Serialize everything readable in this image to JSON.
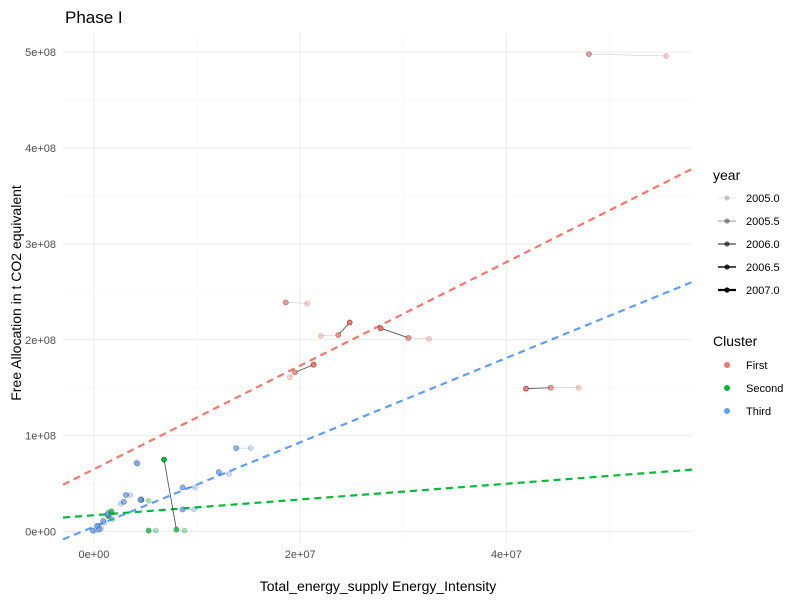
{
  "chart_data": {
    "type": "scatter",
    "title": "Phase I",
    "xlabel": "Total_energy_supply Energy_Intensity",
    "ylabel": "Free Allocation in t CO2 equivalent",
    "xlim": [
      -3000000,
      58000000
    ],
    "ylim": [
      -12000000,
      520000000
    ],
    "x_ticks": [
      {
        "value": 0,
        "label": "0e+00"
      },
      {
        "value": 20000000,
        "label": "2e+07"
      },
      {
        "value": 40000000,
        "label": "4e+07"
      }
    ],
    "y_ticks": [
      {
        "value": 0,
        "label": "0e+00"
      },
      {
        "value": 100000000,
        "label": "1e+08"
      },
      {
        "value": 200000000,
        "label": "2e+08"
      },
      {
        "value": 300000000,
        "label": "3e+08"
      },
      {
        "value": 400000000,
        "label": "4e+08"
      },
      {
        "value": 500000000,
        "label": "5e+08"
      }
    ],
    "grid": true,
    "legend_placement": "right",
    "legends": {
      "year": {
        "title": "year",
        "entries": [
          "2005.0",
          "2005.5",
          "2006.0",
          "2006.5",
          "2007.0"
        ]
      },
      "cluster": {
        "title": "Cluster",
        "entries": [
          {
            "name": "First",
            "color": "#F8766D"
          },
          {
            "name": "Second",
            "color": "#00BA38"
          },
          {
            "name": "Third",
            "color": "#619CFF"
          }
        ]
      }
    },
    "trend_lines": [
      {
        "cluster": "First",
        "color": "#F8766D",
        "intercept": 65000000,
        "slope": 5.4
      },
      {
        "cluster": "Third",
        "color": "#619CFF",
        "intercept": 5000000,
        "slope": 4.4
      },
      {
        "cluster": "Second",
        "color": "#00BA38",
        "intercept": 17000000,
        "slope": 0.82
      }
    ],
    "series": [
      {
        "cluster": "First",
        "x": [
          55500000,
          48000000
        ],
        "y": [
          496000000,
          498000000
        ]
      },
      {
        "cluster": "First",
        "x": [
          20700000,
          18600000
        ],
        "y": [
          238000000,
          239000000
        ]
      },
      {
        "cluster": "First",
        "x": [
          22000000,
          23700000,
          24800000
        ],
        "y": [
          204000000,
          205000000,
          218000000
        ]
      },
      {
        "cluster": "First",
        "x": [
          32500000,
          30500000,
          27800000
        ],
        "y": [
          201000000,
          202000000,
          212000000
        ]
      },
      {
        "cluster": "First",
        "x": [
          19000000,
          19500000,
          21300000
        ],
        "y": [
          161000000,
          166000000,
          174000000
        ]
      },
      {
        "cluster": "First",
        "x": [
          47000000,
          44300000,
          41900000
        ],
        "y": [
          150000000,
          150000000,
          149000000
        ]
      },
      {
        "cluster": "Second",
        "x": [
          8800000,
          8000000,
          6800000
        ],
        "y": [
          1000000,
          2000000,
          75000000
        ]
      },
      {
        "cluster": "Second",
        "x": [
          6000000,
          5300000
        ],
        "y": [
          1000000,
          1000000
        ]
      },
      {
        "cluster": "Second",
        "x": [
          5300000,
          4600000
        ],
        "y": [
          32000000,
          33000000
        ]
      },
      {
        "cluster": "Second",
        "x": [
          1800000,
          1400000
        ],
        "y": [
          13000000,
          16000000
        ]
      },
      {
        "cluster": "Second",
        "x": [
          1400000,
          1700000
        ],
        "y": [
          20000000,
          21000000
        ]
      },
      {
        "cluster": "Third",
        "x": [
          15200000,
          13800000
        ],
        "y": [
          87000000,
          87000000
        ]
      },
      {
        "cluster": "Third",
        "x": [
          13100000,
          12100000
        ],
        "y": [
          60000000,
          62000000
        ]
      },
      {
        "cluster": "Third",
        "x": [
          9800000,
          8600000
        ],
        "y": [
          46000000,
          46000000
        ]
      },
      {
        "cluster": "Third",
        "x": [
          9700000,
          8600000
        ],
        "y": [
          23000000,
          23000000
        ]
      },
      {
        "cluster": "Third",
        "x": [
          4100000,
          4200000
        ],
        "y": [
          72000000,
          71000000
        ]
      },
      {
        "cluster": "Third",
        "x": [
          3500000,
          3100000
        ],
        "y": [
          38000000,
          38000000
        ]
      },
      {
        "cluster": "Third",
        "x": [
          4600000,
          4500000
        ],
        "y": [
          34000000,
          33000000
        ]
      },
      {
        "cluster": "Third",
        "x": [
          2600000,
          2900000
        ],
        "y": [
          29000000,
          31000000
        ]
      },
      {
        "cluster": "Third",
        "x": [
          1500000,
          1300000
        ],
        "y": [
          17000000,
          18000000
        ]
      },
      {
        "cluster": "Third",
        "x": [
          1000000,
          900000
        ],
        "y": [
          9000000,
          11000000
        ]
      },
      {
        "cluster": "Third",
        "x": [
          500000,
          300000
        ],
        "y": [
          5000000,
          6000000
        ]
      },
      {
        "cluster": "Third",
        "x": [
          100000,
          -100000
        ],
        "y": [
          1000000,
          1000000
        ]
      },
      {
        "cluster": "Third",
        "x": [
          700000,
          500000
        ],
        "y": [
          3000000,
          2000000
        ]
      }
    ]
  }
}
